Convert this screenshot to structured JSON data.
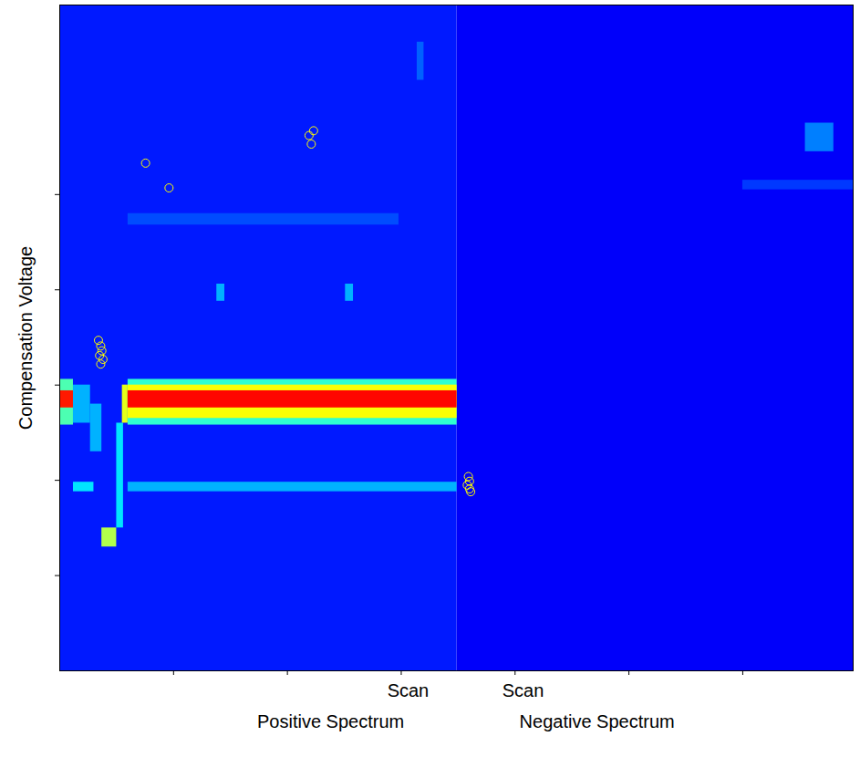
{
  "chart_data": {
    "type": "heatmap",
    "ylabel": "Compensation Voltage",
    "x_labels": [
      {
        "text": "Scan",
        "x": 3.06
      },
      {
        "text": "Scan",
        "x": 4.07
      }
    ],
    "x_sublabels": [
      {
        "text": "Positive Spectrum",
        "x": 2.38
      },
      {
        "text": "Negative Spectrum",
        "x": 4.72
      }
    ],
    "xlim": [
      0,
      6.97
    ],
    "ylim": [
      0,
      6.99
    ],
    "xticks": [
      1,
      2,
      3,
      4,
      5,
      6
    ],
    "yticks": [
      1,
      2,
      3,
      4,
      5
    ],
    "tick_labels": false,
    "zlim": [
      0,
      1
    ],
    "cells": [
      {
        "x1": 0,
        "x2": 3.49,
        "y1": 0,
        "y2": 6.99,
        "value": 0.15
      },
      {
        "x1": 3.49,
        "x2": 6.97,
        "y1": 0,
        "y2": 6.99,
        "value": 0.12
      },
      {
        "x1": 0.6,
        "x2": 2.98,
        "y1": 4.68,
        "y2": 4.8,
        "value": 0.2
      },
      {
        "x1": 1.38,
        "x2": 1.45,
        "y1": 3.88,
        "y2": 4.06,
        "value": 0.3
      },
      {
        "x1": 2.51,
        "x2": 2.58,
        "y1": 3.88,
        "y2": 4.06,
        "value": 0.3
      },
      {
        "x1": 3.14,
        "x2": 3.2,
        "y1": 6.2,
        "y2": 6.6,
        "value": 0.22
      },
      {
        "x1": 6.0,
        "x2": 6.97,
        "y1": 5.05,
        "y2": 5.15,
        "value": 0.18
      },
      {
        "x1": 6.55,
        "x2": 6.8,
        "y1": 5.45,
        "y2": 5.75,
        "value": 0.25
      },
      {
        "x1": 0.12,
        "x2": 0.3,
        "y1": 1.88,
        "y2": 1.98,
        "value": 0.35
      },
      {
        "x1": 0.6,
        "x2": 3.49,
        "y1": 1.88,
        "y2": 1.98,
        "value": 0.3
      },
      {
        "x1": 0,
        "x2": 0.12,
        "y1": 2.58,
        "y2": 3.06,
        "value": 0.45
      },
      {
        "x1": 0,
        "x2": 0.12,
        "y1": 2.76,
        "y2": 2.94,
        "value": 0.85
      },
      {
        "x1": 0.12,
        "x2": 0.27,
        "y1": 2.6,
        "y2": 3.0,
        "value": 0.3
      },
      {
        "x1": 0.27,
        "x2": 0.37,
        "y1": 2.3,
        "y2": 2.8,
        "value": 0.3
      },
      {
        "x1": 0.37,
        "x2": 0.5,
        "y1": 1.3,
        "y2": 1.5,
        "value": 0.55
      },
      {
        "x1": 0.5,
        "x2": 0.56,
        "y1": 1.5,
        "y2": 2.6,
        "value": 0.35
      },
      {
        "x1": 0.55,
        "x2": 0.6,
        "y1": 2.6,
        "y2": 3.0,
        "value": 0.6
      },
      {
        "x1": 0.6,
        "x2": 3.49,
        "y1": 2.58,
        "y2": 3.06,
        "value": 0.42
      },
      {
        "x1": 0.6,
        "x2": 3.49,
        "y1": 2.65,
        "y2": 3.0,
        "value": 0.62
      },
      {
        "x1": 0.6,
        "x2": 3.49,
        "y1": 2.76,
        "y2": 2.94,
        "value": 0.87
      }
    ],
    "points": {
      "color": "#ffff00",
      "marker": "circle",
      "x": [
        0.754,
        0.96,
        2.19,
        2.23,
        2.21,
        0.34,
        0.36,
        0.37,
        0.35,
        0.38,
        0.36,
        3.59,
        3.6,
        3.58,
        3.6,
        3.61
      ],
      "y": [
        5.33,
        5.07,
        5.62,
        5.67,
        5.53,
        3.47,
        3.41,
        3.36,
        3.31,
        3.27,
        3.22,
        2.04,
        1.99,
        1.95,
        1.91,
        1.88
      ]
    }
  }
}
